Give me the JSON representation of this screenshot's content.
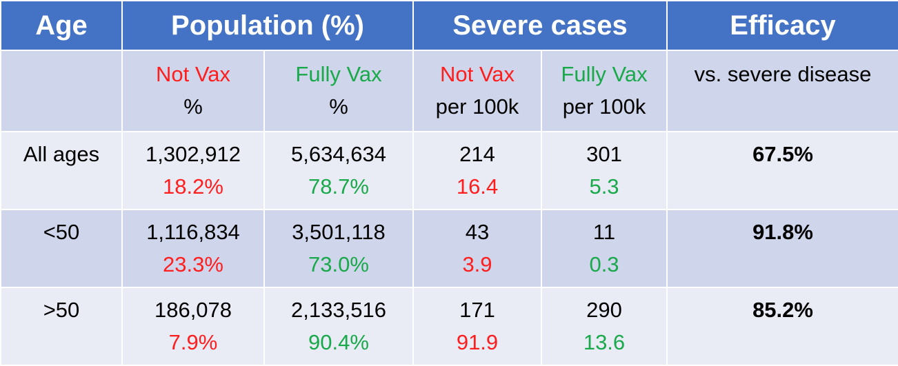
{
  "colors": {
    "header_bg": "#4472c4",
    "band_dark": "#cfd5ea",
    "band_light": "#e9ebf5",
    "not_vax": "#ff1e1e",
    "fully_vax": "#19a94a"
  },
  "header": {
    "age": "Age",
    "population": "Population (%)",
    "severe": "Severe cases",
    "efficacy": "Efficacy"
  },
  "subheader": {
    "pop_not_vax": "Not Vax",
    "pop_not_vax_unit": "%",
    "pop_fully_vax": "Fully Vax",
    "pop_fully_vax_unit": "%",
    "sev_not_vax": "Not Vax",
    "sev_not_vax_unit": "per 100k",
    "sev_fully_vax": "Fully Vax",
    "sev_fully_vax_unit": "per 100k",
    "efficacy_note": "vs. severe disease"
  },
  "rows": [
    {
      "age": "All ages",
      "pop_nv": "1,302,912",
      "pop_nv_pct": "18.2%",
      "pop_fv": "5,634,634",
      "pop_fv_pct": "78.7%",
      "sev_nv": "214",
      "sev_nv_rate": "16.4",
      "sev_fv": "301",
      "sev_fv_rate": "5.3",
      "efficacy": "67.5%"
    },
    {
      "age": "<50",
      "pop_nv": "1,116,834",
      "pop_nv_pct": "23.3%",
      "pop_fv": "3,501,118",
      "pop_fv_pct": "73.0%",
      "sev_nv": "43",
      "sev_nv_rate": "3.9",
      "sev_fv": "11",
      "sev_fv_rate": "0.3",
      "efficacy": "91.8%"
    },
    {
      "age": ">50",
      "pop_nv": "186,078",
      "pop_nv_pct": "7.9%",
      "pop_fv": "2,133,516",
      "pop_fv_pct": "90.4%",
      "sev_nv": "171",
      "sev_nv_rate": "91.9",
      "sev_fv": "290",
      "sev_fv_rate": "13.6",
      "efficacy": "85.2%"
    }
  ]
}
